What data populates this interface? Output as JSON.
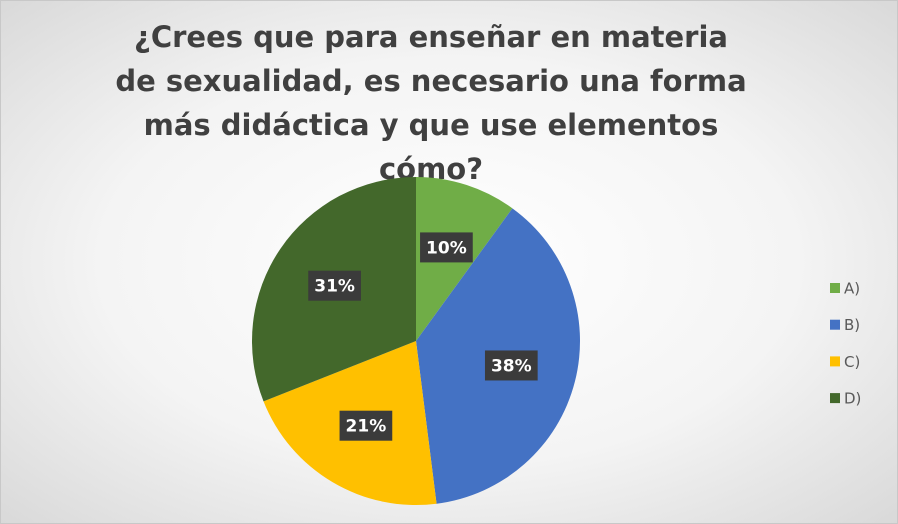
{
  "chart_data": {
    "type": "pie",
    "title": "¿Crees que para enseñar en materia de sexualidad, es necesario una forma más didáctica y que use elementos cómo?",
    "categories": [
      "A)",
      "B)",
      "C)",
      "D)"
    ],
    "values": [
      10,
      38,
      21,
      31
    ],
    "value_labels": [
      "10%",
      "38%",
      "21%",
      "31%"
    ],
    "colors": [
      "#70ad47",
      "#4472c4",
      "#ffc000",
      "#43682b"
    ],
    "legend": "right"
  }
}
